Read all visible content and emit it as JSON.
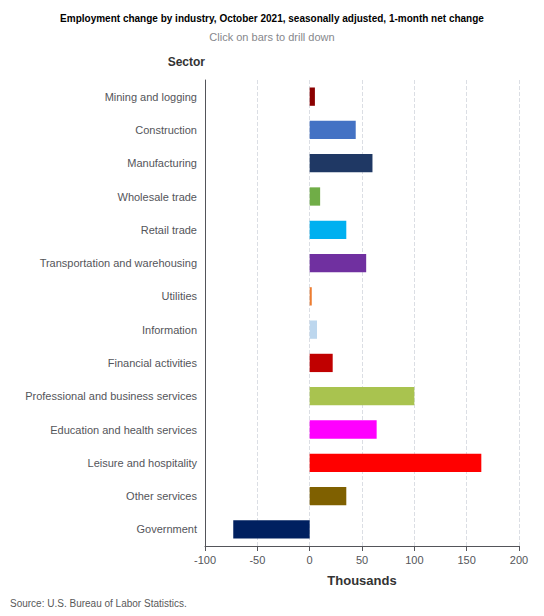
{
  "chart_data": {
    "type": "bar",
    "orientation": "horizontal",
    "title": "Employment change by industry, October 2021, seasonally adjusted, 1-month net change",
    "subtitle": "Click on bars to drill down",
    "xlabel": "Thousands",
    "ylabel": "Sector",
    "annotations": [
      "Source: U.S. Bureau of Labor Statistics."
    ],
    "categories": [
      "Government",
      "Other services",
      "Leisure and hospitality",
      "Education and health services",
      "Professional and business services",
      "Financial activities",
      "Information",
      "Utilities",
      "Transportation and warehousing",
      "Retail trade",
      "Wholesale trade",
      "Manufacturing",
      "Construction",
      "Mining and logging"
    ],
    "values": [
      -73,
      35,
      164,
      64,
      100,
      22,
      7,
      2,
      54,
      35,
      10,
      60,
      44,
      5
    ],
    "colors": [
      "#002060",
      "#7F6000",
      "#FF0000",
      "#FF00FF",
      "#A9C34F",
      "#C00000",
      "#BDD7EE",
      "#ED7D31",
      "#7030A0",
      "#00B0F0",
      "#70AD47",
      "#1F3864",
      "#4472C4",
      "#8B0000"
    ],
    "xlim": [
      -100,
      200
    ],
    "xticks": [
      -100,
      -50,
      0,
      50,
      100,
      150,
      200
    ],
    "grid": true
  }
}
